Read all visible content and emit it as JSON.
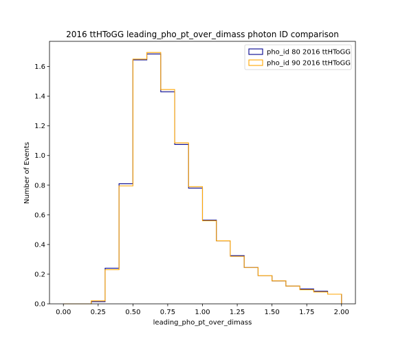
{
  "chart_data": {
    "type": "histogram",
    "title": "2016 ttHToGG leading_pho_pt_over_dimass photon ID comparison",
    "xlabel": "leading_pho_pt_over_dimass",
    "ylabel": "Number of Events",
    "xlim": [
      -0.1,
      2.1
    ],
    "ylim": [
      0,
      1.77
    ],
    "x_ticks": [
      "0.00",
      "0.25",
      "0.50",
      "0.75",
      "1.00",
      "1.25",
      "1.50",
      "1.75",
      "2.00"
    ],
    "y_ticks": [
      "0.0",
      "0.2",
      "0.4",
      "0.6",
      "0.8",
      "1.0",
      "1.2",
      "1.4",
      "1.6"
    ],
    "bin_edges": [
      0.0,
      0.1,
      0.2,
      0.3,
      0.4,
      0.5,
      0.6,
      0.7,
      0.8,
      0.9,
      1.0,
      1.1,
      1.2,
      1.3,
      1.4,
      1.5,
      1.6,
      1.7,
      1.8,
      1.9,
      2.0
    ],
    "series": [
      {
        "name": "pho_id 80 2016 ttHToGG",
        "color": "#00008b",
        "values": [
          0.0,
          0.0,
          0.015,
          0.24,
          0.81,
          1.645,
          1.685,
          1.43,
          1.075,
          0.78,
          0.565,
          0.425,
          0.325,
          0.245,
          0.19,
          0.155,
          0.12,
          0.1,
          0.085,
          0.065
        ]
      },
      {
        "name": "pho_id 90 2016 ttHToGG",
        "color": "#ffa500",
        "values": [
          0.0,
          0.0,
          0.02,
          0.23,
          0.795,
          1.65,
          1.695,
          1.445,
          1.085,
          0.79,
          0.56,
          0.425,
          0.32,
          0.245,
          0.19,
          0.155,
          0.12,
          0.095,
          0.08,
          0.065
        ]
      }
    ],
    "legend_position": "top-right"
  }
}
